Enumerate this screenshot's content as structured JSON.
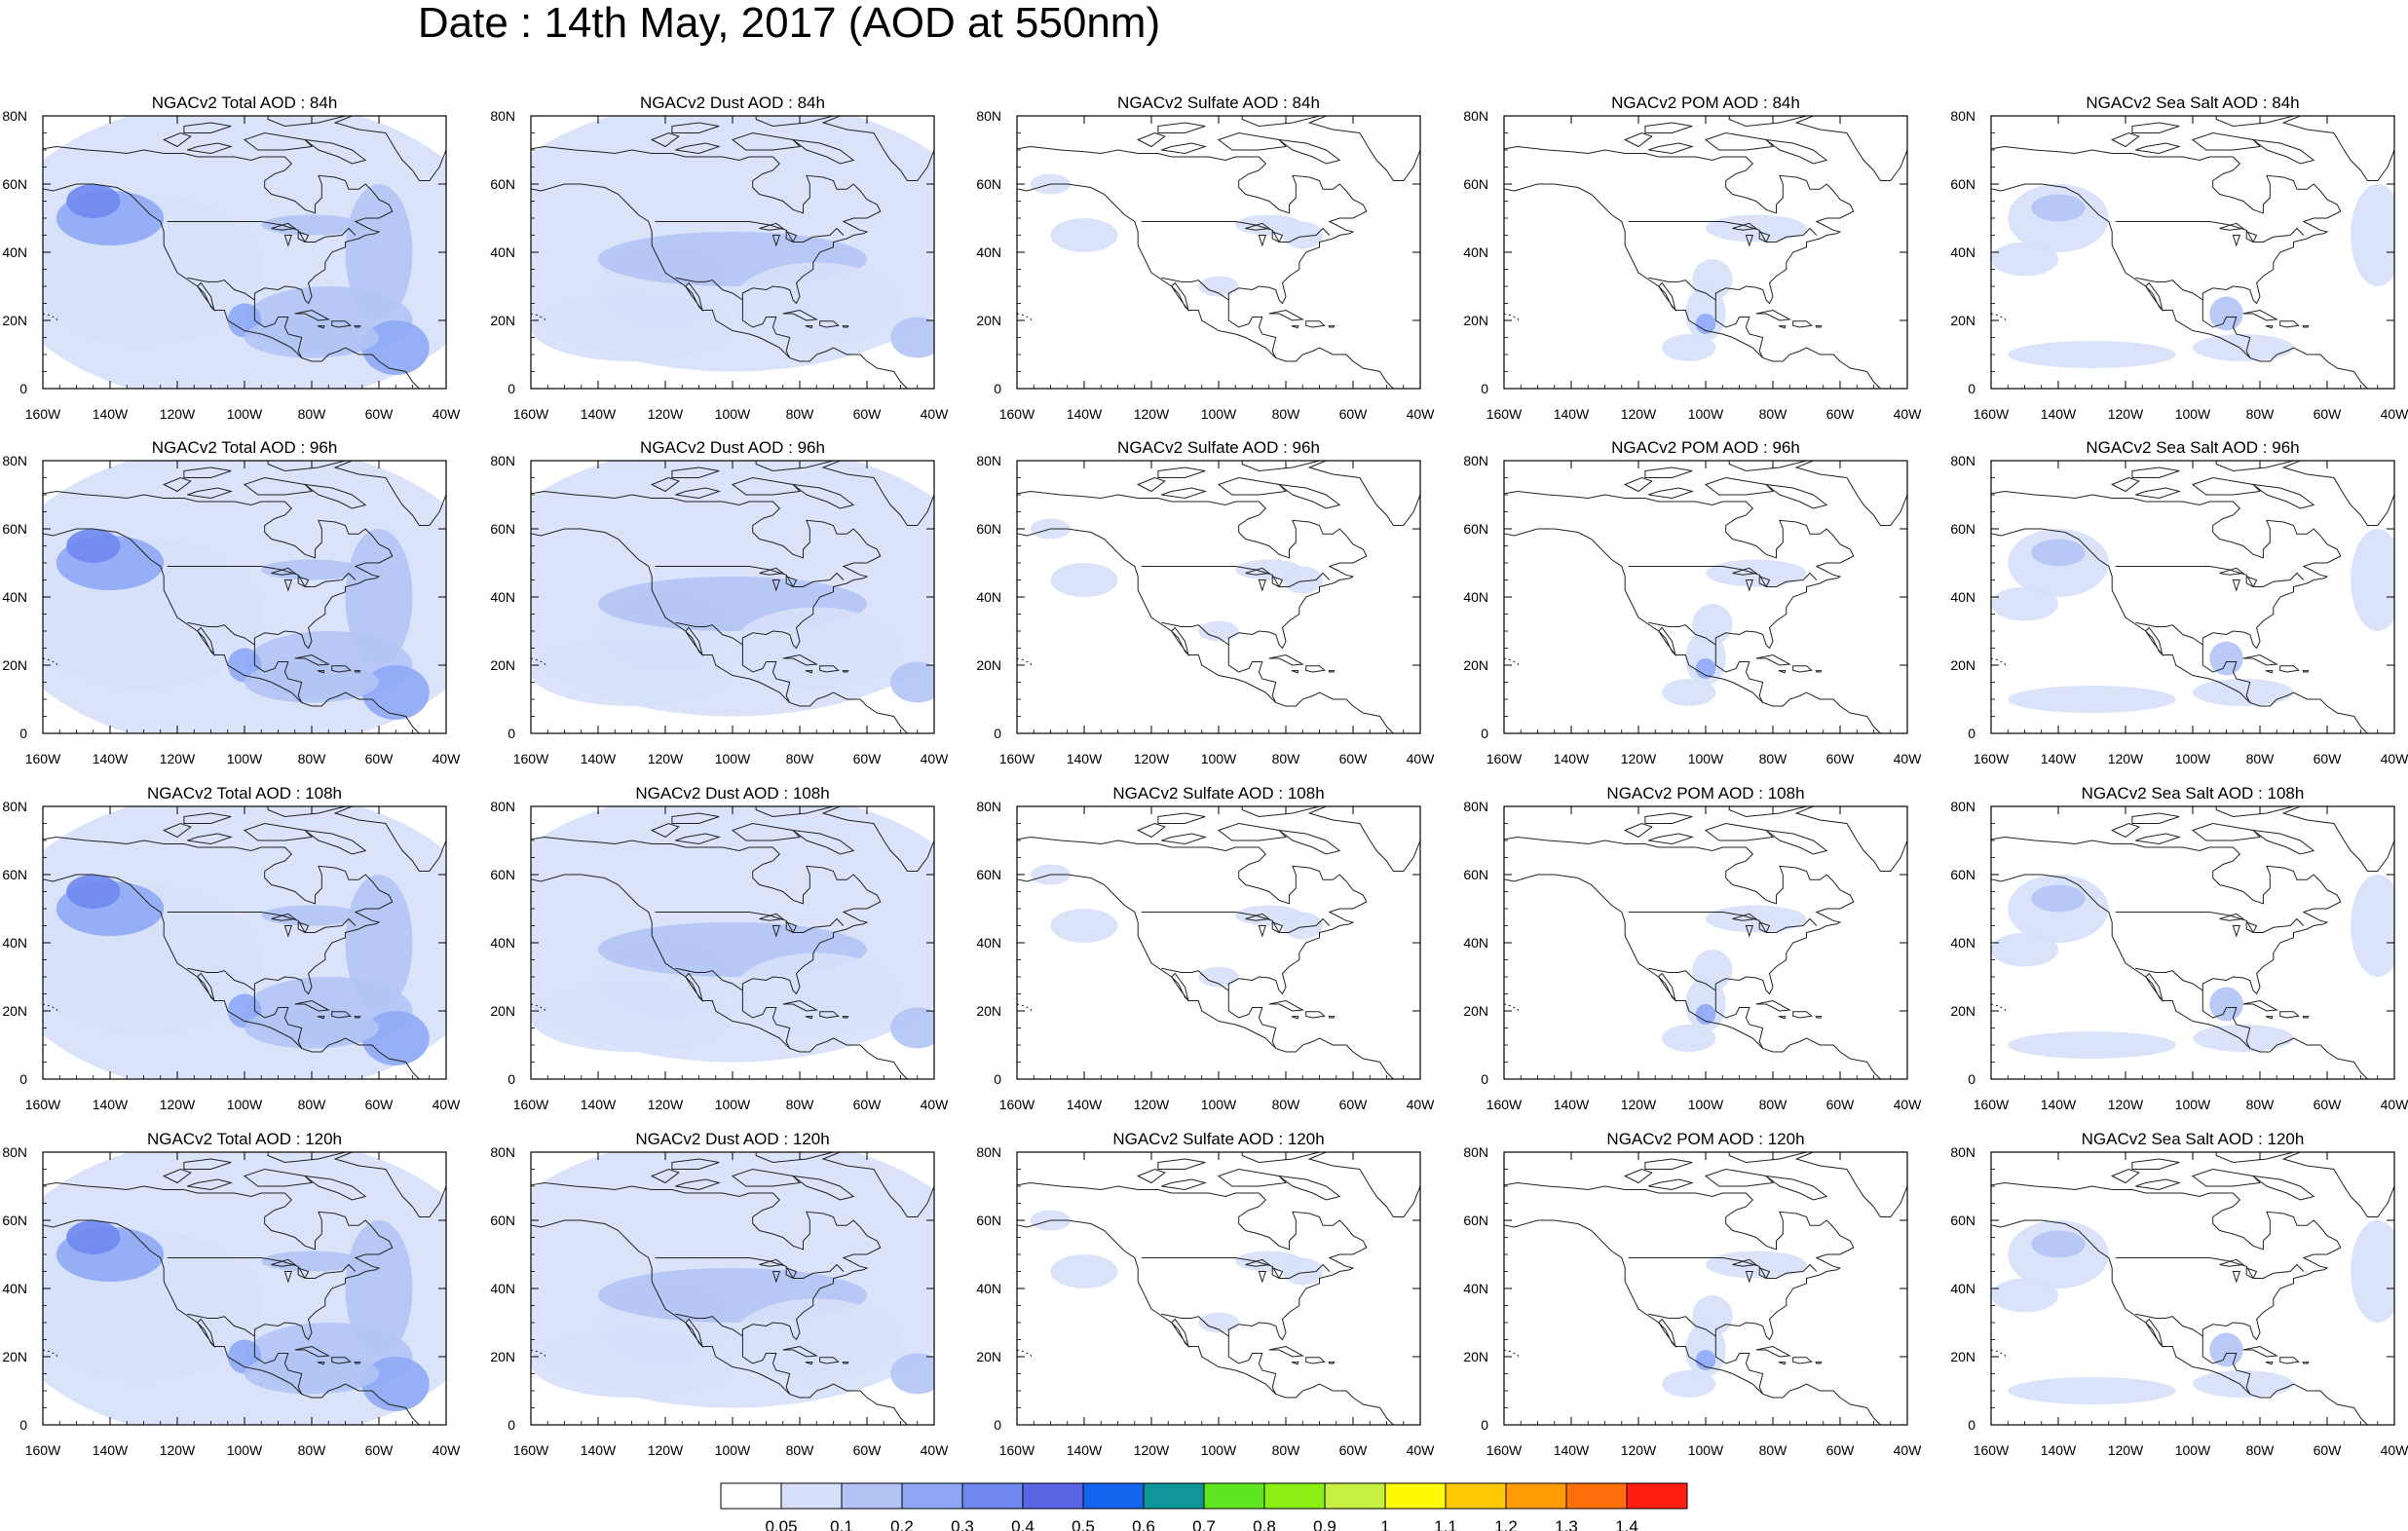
{
  "title": "Date : 14th May, 2017 (AOD at 550nm)",
  "columns": [
    {
      "key": "total",
      "label": "NGACv2 Total AOD"
    },
    {
      "key": "dust",
      "label": "NGACv2 Dust AOD"
    },
    {
      "key": "sulfate",
      "label": "NGACv2 Sulfate AOD"
    },
    {
      "key": "pom",
      "label": "NGACv2 POM AOD"
    },
    {
      "key": "seasalt",
      "label": "NGACv2 Sea Salt AOD"
    }
  ],
  "panels": [
    [
      "NGACv2 Total AOD : 84h",
      "NGACv2 Dust AOD : 84h",
      "NGACv2 Sulfate AOD : 84h",
      "NGACv2 POM AOD : 84h",
      "NGACv2 Sea Salt AOD : 84h"
    ],
    [
      "NGACv2 Total AOD : 96h",
      "NGACv2 Dust AOD : 96h",
      "NGACv2 Sulfate AOD : 96h",
      "NGACv2 POM AOD : 96h",
      "NGACv2 Sea Salt AOD : 96h"
    ],
    [
      "NGACv2 Total AOD : 108h",
      "NGACv2 Dust AOD : 108h",
      "NGACv2 Sulfate AOD : 108h",
      "NGACv2 POM AOD : 108h",
      "NGACv2 Sea Salt AOD : 108h"
    ],
    [
      "NGACv2 Total AOD : 120h",
      "NGACv2 Dust AOD : 120h",
      "NGACv2 Sulfate AOD : 120h",
      "NGACv2 POM AOD : 120h",
      "NGACv2 Sea Salt  AOD : 120h"
    ]
  ],
  "map": {
    "lon_ticks": [
      "160W",
      "140W",
      "120W",
      "100W",
      "80W",
      "60W",
      "40W"
    ],
    "lat_ticks": [
      "0",
      "20N",
      "40N",
      "60N",
      "80N"
    ],
    "lon_range": [
      -160,
      -40
    ],
    "lat_range": [
      0,
      80
    ]
  },
  "colorbar": {
    "colors": [
      "#ffffff",
      "#d7e0fa",
      "#b2c4f5",
      "#8ea8f5",
      "#6e88f0",
      "#5a65e6",
      "#1464f0",
      "#0f969b",
      "#5fe61e",
      "#8cf014",
      "#c8f041",
      "#fffa05",
      "#ffc805",
      "#ff9b05",
      "#ff6e0a",
      "#ff1e0f"
    ],
    "labels": [
      "0.05",
      "0.1",
      "0.2",
      "0.3",
      "0.4",
      "0.5",
      "0.6",
      "0.7",
      "0.8",
      "0.9",
      "1",
      "1.1",
      "1.2",
      "1.3",
      "1.4"
    ]
  }
}
